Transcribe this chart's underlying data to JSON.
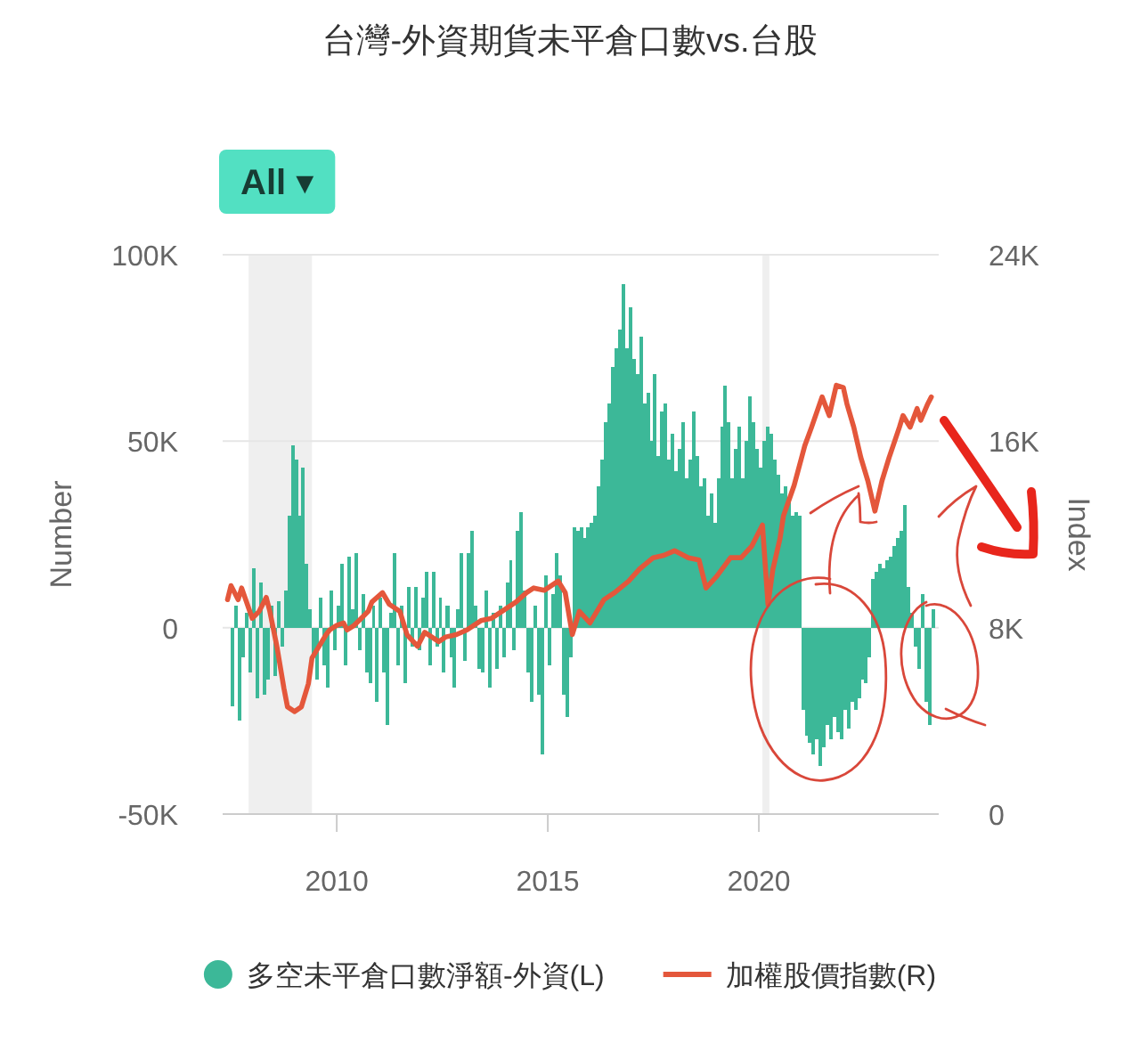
{
  "chart_data": {
    "type": "bar",
    "title": "台灣-外資期貨未平倉口數vs.台股",
    "ylabel": "Number",
    "y2label": "Index",
    "annotations": [
      "All ▾"
    ],
    "xlim": [
      "2007-04-20",
      "2024-04-05"
    ],
    "xticks": [
      "2010",
      "2015",
      "2020"
    ],
    "ylim": [
      -50000,
      100000
    ],
    "yticks": [
      {
        "value": -50000,
        "label": "-50K"
      },
      0,
      {
        "value": 50000,
        "label": "50K"
      },
      {
        "value": 100000,
        "label": "100K"
      }
    ],
    "y2lim": [
      0,
      24000
    ],
    "y2ticks": [
      0,
      {
        "value": 8000,
        "label": "8K"
      },
      {
        "value": 16000,
        "label": "16K"
      },
      {
        "value": 24000,
        "label": "24K"
      }
    ],
    "grid": "y",
    "legend": "bottom",
    "bands": [
      {
        "axis": "x",
        "from": "2007-12",
        "to": "2009-06",
        "color": "#efefef"
      },
      {
        "axis": "x",
        "from": "2020-02",
        "to": "2020-04",
        "color": "#efefef"
      }
    ],
    "series": [
      {
        "name": "多空未平倉口數淨額-外資(L)",
        "color": "#3cb898",
        "x": [
          "2007-07",
          "2007-08",
          "2007-09",
          "2007-10",
          "2007-11",
          "2007-12",
          "2008-01",
          "2008-02",
          "2008-03",
          "2008-04",
          "2008-05",
          "2008-06",
          "2008-07",
          "2008-08",
          "2008-09",
          "2008-10",
          "2008-11",
          "2008-12",
          "2009-01",
          "2009-02",
          "2009-03",
          "2009-04",
          "2009-05",
          "2009-06",
          "2009-07",
          "2009-08",
          "2009-09",
          "2009-10",
          "2009-11",
          "2009-12",
          "2010-01",
          "2010-02",
          "2010-03",
          "2010-04",
          "2010-05",
          "2010-06",
          "2010-07",
          "2010-08",
          "2010-09",
          "2010-10",
          "2010-11",
          "2010-12",
          "2011-01",
          "2011-02",
          "2011-03",
          "2011-04",
          "2011-05",
          "2011-06",
          "2011-07",
          "2011-08",
          "2011-09",
          "2011-10",
          "2011-11",
          "2011-12",
          "2012-01",
          "2012-02",
          "2012-03",
          "2012-04",
          "2012-05",
          "2012-06",
          "2012-07",
          "2012-08",
          "2012-09",
          "2012-10",
          "2012-11",
          "2012-12",
          "2013-01",
          "2013-02",
          "2013-03",
          "2013-04",
          "2013-05",
          "2013-06",
          "2013-07",
          "2013-08",
          "2013-09",
          "2013-10",
          "2013-11",
          "2013-12",
          "2014-01",
          "2014-02",
          "2014-03",
          "2014-04",
          "2014-05",
          "2014-06",
          "2014-07",
          "2014-08",
          "2014-09",
          "2014-10",
          "2014-11",
          "2014-12",
          "2015-01",
          "2015-02",
          "2015-03",
          "2015-04",
          "2015-05",
          "2015-06",
          "2015-07",
          "2015-08",
          "2015-09",
          "2015-10",
          "2015-11",
          "2015-12",
          "2016-01",
          "2016-02",
          "2016-03",
          "2016-04",
          "2016-05",
          "2016-06",
          "2016-07",
          "2016-08",
          "2016-09",
          "2016-10",
          "2016-11",
          "2016-12",
          "2017-01",
          "2017-02",
          "2017-03",
          "2017-04",
          "2017-05",
          "2017-06",
          "2017-07",
          "2017-08",
          "2017-09",
          "2017-10",
          "2017-11",
          "2017-12",
          "2018-01",
          "2018-02",
          "2018-03",
          "2018-04",
          "2018-05",
          "2018-06",
          "2018-07",
          "2018-08",
          "2018-09",
          "2018-10",
          "2018-11",
          "2018-12",
          "2019-01",
          "2019-02",
          "2019-03",
          "2019-04",
          "2019-05",
          "2019-06",
          "2019-07",
          "2019-08",
          "2019-09",
          "2019-10",
          "2019-11",
          "2019-12",
          "2020-01",
          "2020-02",
          "2020-03",
          "2020-04",
          "2020-05",
          "2020-06",
          "2020-07",
          "2020-08",
          "2020-09",
          "2020-10",
          "2020-11",
          "2020-12",
          "2021-01",
          "2021-02",
          "2021-03",
          "2021-04",
          "2021-05",
          "2021-06",
          "2021-07",
          "2021-08",
          "2021-09",
          "2021-10",
          "2021-11",
          "2021-12",
          "2022-01",
          "2022-02",
          "2022-03",
          "2022-04",
          "2022-05",
          "2022-06",
          "2022-07",
          "2022-08",
          "2022-09",
          "2022-10",
          "2022-11",
          "2022-12",
          "2023-01",
          "2023-02",
          "2023-03",
          "2023-04",
          "2023-05",
          "2023-06",
          "2023-07",
          "2023-08",
          "2023-09",
          "2023-10",
          "2023-11",
          "2023-12",
          "2024-01",
          "2024-02"
        ],
        "values": [
          -21000,
          6000,
          -25000,
          -8000,
          4000,
          -12000,
          16000,
          -19000,
          12000,
          -18000,
          -14000,
          6000,
          -13000,
          7000,
          -5000,
          10000,
          30000,
          49000,
          45000,
          30000,
          43000,
          17000,
          5000,
          -8000,
          -14000,
          8000,
          -10000,
          -16000,
          10000,
          -6000,
          6000,
          17000,
          -10000,
          19000,
          5000,
          20000,
          -6000,
          9000,
          -12000,
          -15000,
          6000,
          -20000,
          8000,
          -12000,
          -26000,
          4000,
          20000,
          -10000,
          6000,
          -15000,
          11000,
          -5000,
          11000,
          -6000,
          8000,
          15000,
          -10000,
          15000,
          -5000,
          8000,
          -12000,
          6000,
          -8000,
          -16000,
          5000,
          20000,
          -9000,
          20000,
          26000,
          6000,
          -11000,
          -12000,
          10000,
          -16000,
          4000,
          -11000,
          6000,
          -8000,
          12000,
          18000,
          -6000,
          26000,
          31000,
          10000,
          -12000,
          -20000,
          6000,
          -18000,
          -34000,
          14000,
          -10000,
          9000,
          20000,
          14000,
          -18000,
          -24000,
          -8000,
          27000,
          26000,
          27000,
          24000,
          27000,
          28000,
          30000,
          38000,
          45000,
          55000,
          60000,
          70000,
          75000,
          80000,
          92000,
          75000,
          86000,
          72000,
          68000,
          78000,
          60000,
          63000,
          50000,
          68000,
          46000,
          58000,
          60000,
          45000,
          52000,
          42000,
          48000,
          55000,
          40000,
          45000,
          58000,
          46000,
          38000,
          40000,
          30000,
          36000,
          28000,
          40000,
          54000,
          65000,
          55000,
          40000,
          48000,
          54000,
          40000,
          50000,
          62000,
          55000,
          48000,
          43000,
          50000,
          54000,
          52000,
          45000,
          41000,
          36000,
          38000,
          34000,
          30000,
          31000,
          30000,
          -22000,
          -29000,
          -31000,
          -34000,
          -30000,
          -37000,
          -32000,
          -26000,
          -30000,
          -24000,
          -28000,
          -30000,
          -22000,
          -27000,
          -20000,
          -22000,
          -19000,
          -14000,
          -15000,
          -8000,
          13000,
          15000,
          17000,
          16000,
          18000,
          19000,
          22000,
          24000,
          26000,
          33000,
          11000,
          4000,
          -5000,
          -11000,
          9000,
          -20000,
          -26000,
          5000
        ]
      },
      {
        "name": "加權股價指數(R)",
        "type": "line",
        "axis": "y2",
        "color": "#e4573b",
        "x": [
          "2007-06",
          "2007-07",
          "2007-09",
          "2007-10",
          "2008-01",
          "2008-03",
          "2008-05",
          "2008-06",
          "2008-08",
          "2008-10",
          "2008-11",
          "2009-01",
          "2009-03",
          "2009-05",
          "2009-06",
          "2009-08",
          "2009-10",
          "2009-11",
          "2010-01",
          "2010-03",
          "2010-04",
          "2010-06",
          "2010-08",
          "2010-10",
          "2010-11",
          "2011-02",
          "2011-04",
          "2011-07",
          "2011-09",
          "2011-12",
          "2012-02",
          "2012-06",
          "2012-08",
          "2012-11",
          "2013-02",
          "2013-06",
          "2013-09",
          "2013-12",
          "2014-04",
          "2014-07",
          "2014-09",
          "2014-12",
          "2015-04",
          "2015-06",
          "2015-08",
          "2015-10",
          "2016-01",
          "2016-03",
          "2016-05",
          "2016-08",
          "2016-12",
          "2017-03",
          "2017-07",
          "2017-10",
          "2018-01",
          "2018-05",
          "2018-08",
          "2018-10",
          "2019-01",
          "2019-05",
          "2019-08",
          "2019-11",
          "2020-02",
          "2020-03-20",
          "2020-05",
          "2020-07",
          "2020-08",
          "2020-11",
          "2021-02",
          "2021-04",
          "2021-07",
          "2021-09",
          "2021-11",
          "2022-01",
          "2022-02",
          "2022-04",
          "2022-06",
          "2022-08",
          "2022-10",
          "2022-12",
          "2023-02",
          "2023-05",
          "2023-06",
          "2023-08",
          "2023-10",
          "2023-11",
          "2024-01",
          "2024-02"
        ],
        "values": [
          9200,
          9800,
          9200,
          9700,
          8400,
          8700,
          9300,
          8700,
          7200,
          5400,
          4600,
          4400,
          4600,
          5600,
          6700,
          7200,
          7700,
          7900,
          8100,
          8200,
          7900,
          8100,
          8400,
          8700,
          9100,
          9500,
          9000,
          8700,
          7700,
          7200,
          7800,
          7400,
          7600,
          7700,
          7900,
          8300,
          8400,
          8700,
          9100,
          9500,
          9700,
          9600,
          10000,
          9500,
          7700,
          8700,
          8200,
          8700,
          9200,
          9500,
          10000,
          10500,
          11000,
          11100,
          11300,
          11000,
          10900,
          9700,
          10200,
          11000,
          11000,
          11500,
          12400,
          9000,
          10500,
          11800,
          12800,
          14100,
          15800,
          16600,
          17900,
          17100,
          18400,
          18300,
          17600,
          16600,
          15300,
          14300,
          13000,
          14300,
          15300,
          16600,
          17100,
          16600,
          17400,
          16900,
          17600,
          17900
        ]
      }
    ]
  }
}
